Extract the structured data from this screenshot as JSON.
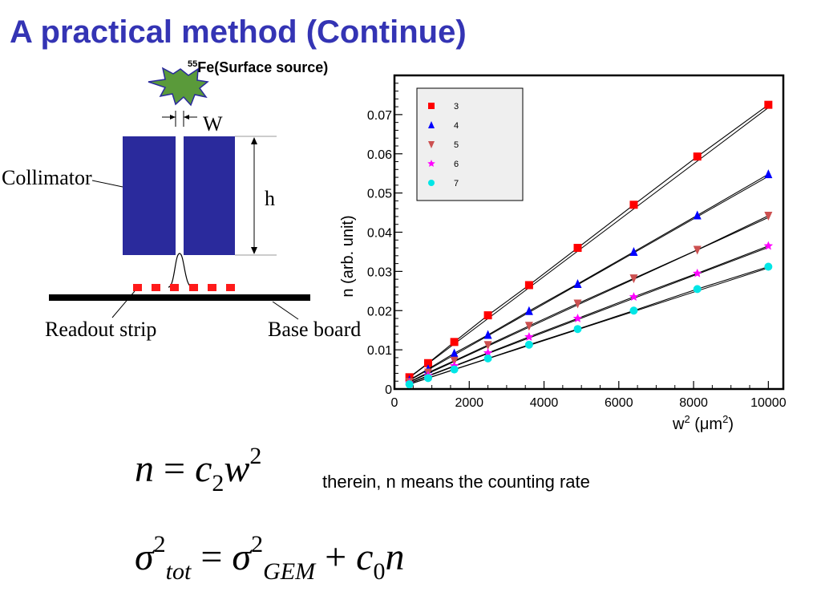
{
  "slide": {
    "title": "A practical method (Continue)"
  },
  "diagram": {
    "source_label_sup": "55",
    "source_label_text": "Fe(Surface source)",
    "w_label": "W",
    "h_label": "h",
    "collimator_label": "Collimator",
    "readout_label": "Readout strip",
    "baseboard_label": "Base board",
    "colors": {
      "collimator": "#2a2a9c",
      "strip": "#ff1a1a",
      "source": "#5a9a3a"
    }
  },
  "chart_data": {
    "type": "scatter",
    "xlabel_base": "w",
    "xlabel_sup": "2",
    "xlabel_unit_prefix": " (",
    "xlabel_unit": "μm",
    "xlabel_unit_sup": "2",
    "xlabel_unit_suffix": ")",
    "ylabel": "n (arb. unit)",
    "xlim": [
      0,
      10400
    ],
    "ylim": [
      0,
      0.08
    ],
    "x_ticks": [
      0,
      2000,
      4000,
      6000,
      8000,
      10000
    ],
    "x_tick_labels": [
      "0",
      "2000",
      "4000",
      "6000",
      "8000",
      "10000"
    ],
    "y_ticks": [
      0,
      0.01,
      0.02,
      0.03,
      0.04,
      0.05,
      0.06,
      0.07
    ],
    "y_tick_labels": [
      "0",
      "0.01",
      "0.02",
      "0.03",
      "0.04",
      "0.05",
      "0.06",
      "0.07"
    ],
    "grid": false,
    "legend_position": "top-left",
    "x": [
      400,
      900,
      1600,
      2500,
      3600,
      4900,
      6400,
      8100,
      10000
    ],
    "series": [
      {
        "name": "3",
        "marker": "square",
        "color": "#ff0000",
        "values": [
          0.003,
          0.0066,
          0.012,
          0.0188,
          0.0265,
          0.036,
          0.047,
          0.0593,
          0.0725
        ]
      },
      {
        "name": "4",
        "marker": "triangle-up",
        "color": "#0000ff",
        "values": [
          0.0023,
          0.0051,
          0.0091,
          0.0138,
          0.0199,
          0.0268,
          0.035,
          0.0443,
          0.0548
        ]
      },
      {
        "name": "5",
        "marker": "triangle-down",
        "color": "#cc5050",
        "values": [
          0.0018,
          0.0042,
          0.0072,
          0.0112,
          0.0161,
          0.0218,
          0.0282,
          0.0355,
          0.0442
        ]
      },
      {
        "name": "6",
        "marker": "star",
        "color": "#ff00ff",
        "values": [
          0.0015,
          0.0034,
          0.0059,
          0.0092,
          0.0133,
          0.018,
          0.0235,
          0.0295,
          0.0365
        ]
      },
      {
        "name": "7",
        "marker": "circle",
        "color": "#00e6e6",
        "values": [
          0.0012,
          0.0028,
          0.005,
          0.0078,
          0.0113,
          0.0153,
          0.02,
          0.0255,
          0.0312
        ]
      }
    ]
  },
  "equations": {
    "eq1_n": "n",
    "eq1_eq": " = ",
    "eq1_c": "c",
    "eq1_sub": "2",
    "eq1_w": "w",
    "eq1_sup": "2",
    "eq1_note": "therein, n means the counting rate",
    "eq2_sigma": "σ",
    "eq2_sup1": "2",
    "eq2_sub1": "tot",
    "eq2_eq": " = ",
    "eq2_sigma2": "σ",
    "eq2_sup2": "2",
    "eq2_sub2": "GEM",
    "eq2_plus": " + ",
    "eq2_c": "c",
    "eq2_sub3": "0",
    "eq2_n": "n"
  }
}
